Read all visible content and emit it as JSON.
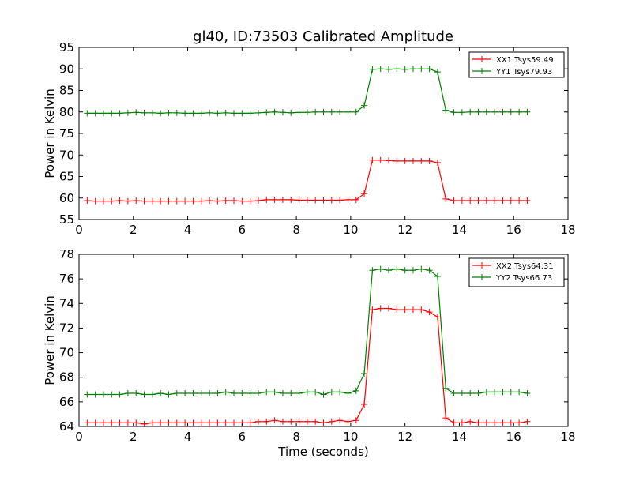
{
  "figure": {
    "title": "gl40, ID:73503 Calibrated Amplitude"
  },
  "chart_data": [
    {
      "type": "line",
      "title": "gl40, ID:73503 Calibrated Amplitude",
      "xlabel": "",
      "ylabel": "Power in Kelvin",
      "xlim": [
        0,
        18
      ],
      "ylim": [
        55,
        95
      ],
      "xticks": [
        0,
        2,
        4,
        6,
        8,
        10,
        12,
        14,
        16,
        18
      ],
      "yticks": [
        55,
        60,
        65,
        70,
        75,
        80,
        85,
        90,
        95
      ],
      "grid": false,
      "legend_position": "top-right",
      "x": [
        0.3,
        0.6,
        0.9,
        1.2,
        1.5,
        1.8,
        2.1,
        2.4,
        2.7,
        3.0,
        3.3,
        3.6,
        3.9,
        4.2,
        4.5,
        4.8,
        5.1,
        5.4,
        5.7,
        6.0,
        6.3,
        6.6,
        6.9,
        7.2,
        7.5,
        7.8,
        8.1,
        8.4,
        8.7,
        9.0,
        9.3,
        9.6,
        9.9,
        10.2,
        10.5,
        10.8,
        11.1,
        11.4,
        11.7,
        12.0,
        12.3,
        12.6,
        12.9,
        13.2,
        13.5,
        13.8,
        14.1,
        14.4,
        14.7,
        15.0,
        15.3,
        15.6,
        15.9,
        16.2,
        16.5
      ],
      "series": [
        {
          "name": "XX1 Tsys59.49",
          "color": "#ff0000",
          "values": [
            59.4,
            59.3,
            59.3,
            59.3,
            59.4,
            59.3,
            59.4,
            59.3,
            59.3,
            59.3,
            59.3,
            59.3,
            59.3,
            59.3,
            59.3,
            59.4,
            59.3,
            59.4,
            59.4,
            59.3,
            59.3,
            59.4,
            59.6,
            59.6,
            59.6,
            59.6,
            59.5,
            59.5,
            59.5,
            59.5,
            59.5,
            59.5,
            59.6,
            59.6,
            61.0,
            68.8,
            68.8,
            68.7,
            68.6,
            68.6,
            68.6,
            68.6,
            68.6,
            68.2,
            59.8,
            59.4,
            59.4,
            59.4,
            59.4,
            59.4,
            59.4,
            59.4,
            59.4,
            59.4,
            59.4
          ]
        },
        {
          "name": "YY1 Tsys79.93",
          "color": "#008000",
          "values": [
            79.7,
            79.7,
            79.7,
            79.7,
            79.7,
            79.8,
            79.9,
            79.8,
            79.8,
            79.7,
            79.8,
            79.8,
            79.7,
            79.7,
            79.7,
            79.8,
            79.7,
            79.8,
            79.7,
            79.7,
            79.7,
            79.8,
            79.9,
            80.0,
            79.9,
            79.8,
            79.9,
            79.9,
            80.0,
            80.0,
            80.0,
            80.0,
            80.0,
            80.0,
            81.5,
            89.9,
            90.0,
            89.9,
            90.0,
            89.9,
            90.0,
            90.0,
            90.0,
            89.3,
            80.4,
            79.9,
            79.9,
            80.0,
            80.0,
            80.0,
            80.0,
            80.0,
            80.0,
            80.0,
            80.0
          ]
        }
      ]
    },
    {
      "type": "line",
      "title": "",
      "xlabel": "Time (seconds)",
      "ylabel": "Power in Kelvin",
      "xlim": [
        0,
        18
      ],
      "ylim": [
        64,
        78
      ],
      "xticks": [
        0,
        2,
        4,
        6,
        8,
        10,
        12,
        14,
        16,
        18
      ],
      "yticks": [
        64,
        66,
        68,
        70,
        72,
        74,
        76,
        78
      ],
      "grid": false,
      "legend_position": "top-right",
      "x": [
        0.3,
        0.6,
        0.9,
        1.2,
        1.5,
        1.8,
        2.1,
        2.4,
        2.7,
        3.0,
        3.3,
        3.6,
        3.9,
        4.2,
        4.5,
        4.8,
        5.1,
        5.4,
        5.7,
        6.0,
        6.3,
        6.6,
        6.9,
        7.2,
        7.5,
        7.8,
        8.1,
        8.4,
        8.7,
        9.0,
        9.3,
        9.6,
        9.9,
        10.2,
        10.5,
        10.8,
        11.1,
        11.4,
        11.7,
        12.0,
        12.3,
        12.6,
        12.9,
        13.2,
        13.5,
        13.8,
        14.1,
        14.4,
        14.7,
        15.0,
        15.3,
        15.6,
        15.9,
        16.2,
        16.5
      ],
      "series": [
        {
          "name": "XX2 Tsys64.31",
          "color": "#ff0000",
          "values": [
            64.3,
            64.3,
            64.3,
            64.3,
            64.3,
            64.3,
            64.3,
            64.2,
            64.3,
            64.3,
            64.3,
            64.3,
            64.3,
            64.3,
            64.3,
            64.3,
            64.3,
            64.3,
            64.3,
            64.3,
            64.3,
            64.4,
            64.4,
            64.5,
            64.4,
            64.4,
            64.4,
            64.4,
            64.4,
            64.3,
            64.4,
            64.5,
            64.4,
            64.5,
            65.8,
            73.5,
            73.6,
            73.6,
            73.5,
            73.5,
            73.5,
            73.5,
            73.3,
            72.9,
            64.7,
            64.3,
            64.3,
            64.4,
            64.3,
            64.3,
            64.3,
            64.3,
            64.3,
            64.3,
            64.4
          ]
        },
        {
          "name": "YY2 Tsys66.73",
          "color": "#008000",
          "values": [
            66.6,
            66.6,
            66.6,
            66.6,
            66.6,
            66.7,
            66.7,
            66.6,
            66.6,
            66.7,
            66.6,
            66.7,
            66.7,
            66.7,
            66.7,
            66.7,
            66.7,
            66.8,
            66.7,
            66.7,
            66.7,
            66.7,
            66.8,
            66.8,
            66.7,
            66.7,
            66.7,
            66.8,
            66.8,
            66.6,
            66.8,
            66.8,
            66.7,
            66.9,
            68.3,
            76.7,
            76.8,
            76.7,
            76.8,
            76.7,
            76.7,
            76.8,
            76.7,
            76.2,
            67.1,
            66.7,
            66.7,
            66.7,
            66.7,
            66.8,
            66.8,
            66.8,
            66.8,
            66.8,
            66.7
          ]
        }
      ]
    }
  ]
}
